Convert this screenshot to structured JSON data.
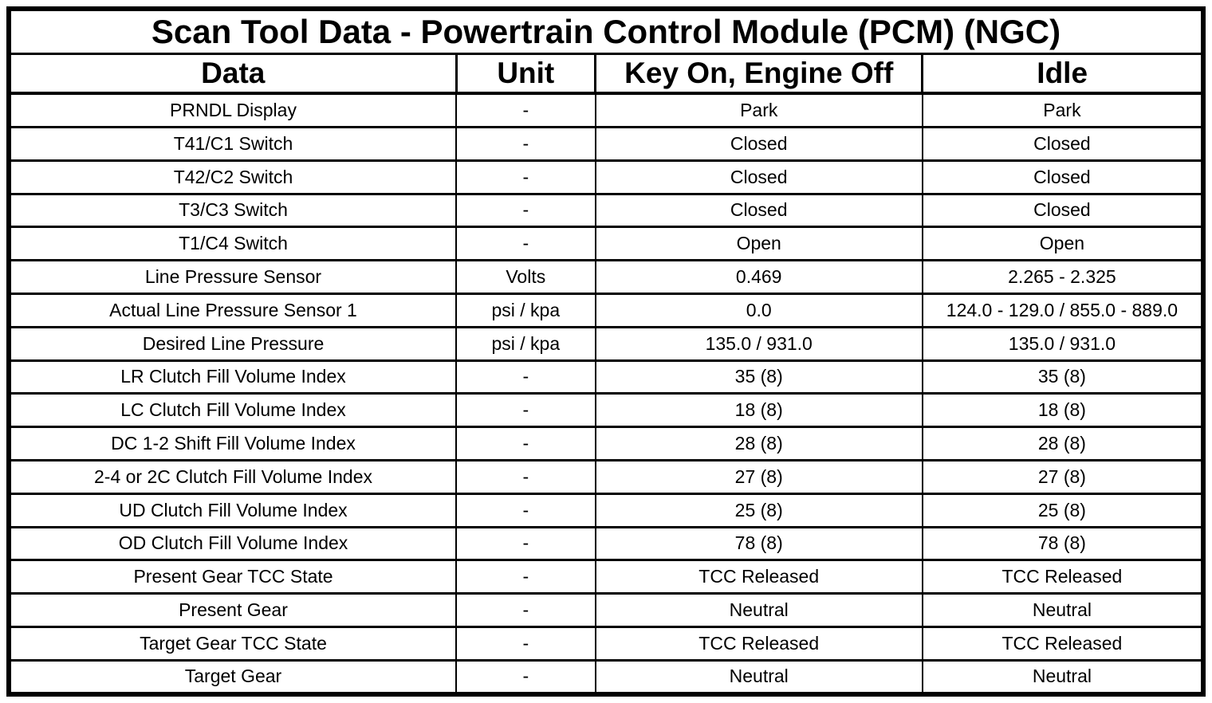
{
  "colors": {
    "border": "#000000",
    "background": "#ffffff",
    "text": "#000000"
  },
  "table": {
    "title": "Scan Tool Data - Powertrain Control Module (PCM) (NGC)",
    "columns": [
      "Data",
      "Unit",
      "Key On, Engine Off",
      "Idle"
    ],
    "rows": [
      [
        "PRNDL Display",
        "-",
        "Park",
        "Park"
      ],
      [
        "T41/C1 Switch",
        "-",
        "Closed",
        "Closed"
      ],
      [
        "T42/C2 Switch",
        "-",
        "Closed",
        "Closed"
      ],
      [
        "T3/C3 Switch",
        "-",
        "Closed",
        "Closed"
      ],
      [
        "T1/C4 Switch",
        "-",
        "Open",
        "Open"
      ],
      [
        "Line Pressure Sensor",
        "Volts",
        "0.469",
        "2.265 - 2.325"
      ],
      [
        "Actual Line Pressure Sensor 1",
        "psi / kpa",
        "0.0",
        "124.0 - 129.0 / 855.0 - 889.0"
      ],
      [
        "Desired Line Pressure",
        "psi / kpa",
        "135.0 / 931.0",
        "135.0 / 931.0"
      ],
      [
        "LR Clutch Fill Volume Index",
        "-",
        "35 (8)",
        "35 (8)"
      ],
      [
        "LC Clutch Fill Volume Index",
        "-",
        "18 (8)",
        "18 (8)"
      ],
      [
        "DC 1-2 Shift Fill Volume Index",
        "-",
        "28 (8)",
        "28 (8)"
      ],
      [
        "2-4 or 2C Clutch Fill Volume Index",
        "-",
        "27 (8)",
        "27 (8)"
      ],
      [
        "UD Clutch Fill Volume Index",
        "-",
        "25 (8)",
        "25 (8)"
      ],
      [
        "OD Clutch Fill Volume Index",
        "-",
        "78 (8)",
        "78 (8)"
      ],
      [
        "Present Gear TCC State",
        "-",
        "TCC Released",
        "TCC Released"
      ],
      [
        "Present Gear",
        "-",
        "Neutral",
        "Neutral"
      ],
      [
        "Target Gear TCC State",
        "-",
        "TCC Released",
        "TCC Released"
      ],
      [
        "Target Gear",
        "-",
        "Neutral",
        "Neutral"
      ]
    ]
  }
}
